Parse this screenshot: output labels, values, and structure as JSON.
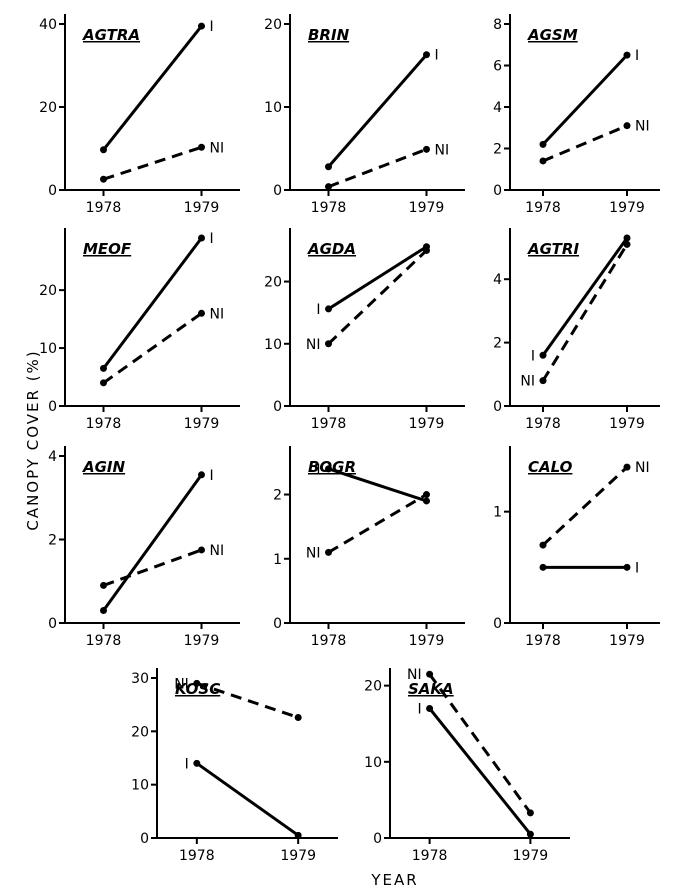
{
  "figure": {
    "ylabel": "CANOPY COVER (%)",
    "xlabel": "YEAR"
  },
  "chart_data": [
    {
      "type": "line",
      "title": "AGTRA",
      "categories": [
        "1978",
        "1979"
      ],
      "yticks": [
        0,
        20,
        40
      ],
      "ylim": [
        0,
        40
      ],
      "series": [
        {
          "name": "I",
          "values": [
            9.7,
            39.5
          ]
        },
        {
          "name": "NI",
          "values": [
            2.6,
            10.3
          ]
        }
      ]
    },
    {
      "type": "line",
      "title": "BRIN",
      "categories": [
        "1978",
        "1979"
      ],
      "yticks": [
        0,
        10,
        20
      ],
      "ylim": [
        0,
        20
      ],
      "series": [
        {
          "name": "I",
          "values": [
            2.8,
            16.3
          ]
        },
        {
          "name": "NI",
          "values": [
            0.4,
            4.9
          ]
        }
      ]
    },
    {
      "type": "line",
      "title": "AGSM",
      "categories": [
        "1978",
        "1979"
      ],
      "yticks": [
        0,
        2,
        4,
        6,
        8
      ],
      "ylim": [
        0,
        8
      ],
      "series": [
        {
          "name": "I",
          "values": [
            2.2,
            6.5
          ]
        },
        {
          "name": "NI",
          "values": [
            1.4,
            3.1
          ]
        }
      ]
    },
    {
      "type": "line",
      "title": "MEOF",
      "categories": [
        "1978",
        "1979"
      ],
      "yticks": [
        0,
        10,
        20
      ],
      "ylim": [
        0,
        29
      ],
      "series": [
        {
          "name": "I",
          "values": [
            6.5,
            29
          ]
        },
        {
          "name": "NI",
          "values": [
            4.0,
            16.0
          ]
        }
      ]
    },
    {
      "type": "line",
      "title": "AGDA",
      "categories": [
        "1978",
        "1979"
      ],
      "yticks": [
        0,
        10,
        20
      ],
      "ylim": [
        0,
        27
      ],
      "series": [
        {
          "name": "I",
          "values": [
            15.6,
            25.6
          ]
        },
        {
          "name": "NI",
          "values": [
            10.0,
            25.0
          ]
        }
      ]
    },
    {
      "type": "line",
      "title": "AGTRI",
      "categories": [
        "1978",
        "1979"
      ],
      "yticks": [
        0,
        2,
        4
      ],
      "ylim": [
        0,
        5.3
      ],
      "series": [
        {
          "name": "I",
          "values": [
            1.6,
            5.3
          ]
        },
        {
          "name": "NI",
          "values": [
            0.8,
            5.1
          ]
        }
      ]
    },
    {
      "type": "line",
      "title": "AGIN",
      "categories": [
        "1978",
        "1979"
      ],
      "yticks": [
        0,
        2,
        4
      ],
      "ylim": [
        0,
        4
      ],
      "series": [
        {
          "name": "I",
          "values": [
            0.3,
            3.55
          ]
        },
        {
          "name": "NI",
          "values": [
            0.9,
            1.75
          ]
        }
      ]
    },
    {
      "type": "line",
      "title": "BOGR",
      "categories": [
        "1978",
        "1979"
      ],
      "yticks": [
        0,
        1,
        2
      ],
      "ylim": [
        0,
        2.6
      ],
      "series": [
        {
          "name": "I",
          "values": [
            2.4,
            1.9
          ]
        },
        {
          "name": "NI",
          "values": [
            1.1,
            2.0
          ]
        }
      ]
    },
    {
      "type": "line",
      "title": "CALO",
      "categories": [
        "1978",
        "1979"
      ],
      "yticks": [
        0,
        1
      ],
      "ylim": [
        0,
        1.5
      ],
      "series": [
        {
          "name": "I",
          "values": [
            0.5,
            0.5
          ]
        },
        {
          "name": "NI",
          "values": [
            0.7,
            1.4
          ]
        }
      ]
    },
    {
      "type": "line",
      "title": "KOSC",
      "categories": [
        "1978",
        "1979"
      ],
      "yticks": [
        0,
        10,
        20,
        30
      ],
      "ylim": [
        0,
        30
      ],
      "series": [
        {
          "name": "I",
          "values": [
            14,
            0.5
          ]
        },
        {
          "name": "NI",
          "values": [
            29,
            22.6
          ]
        }
      ]
    },
    {
      "type": "line",
      "title": "SAKA",
      "categories": [
        "1978",
        "1979"
      ],
      "yticks": [
        0,
        10,
        20
      ],
      "ylim": [
        0,
        21
      ],
      "series": [
        {
          "name": "I",
          "values": [
            17,
            0.5
          ]
        },
        {
          "name": "NI",
          "values": [
            21.5,
            3.3
          ]
        }
      ]
    }
  ]
}
